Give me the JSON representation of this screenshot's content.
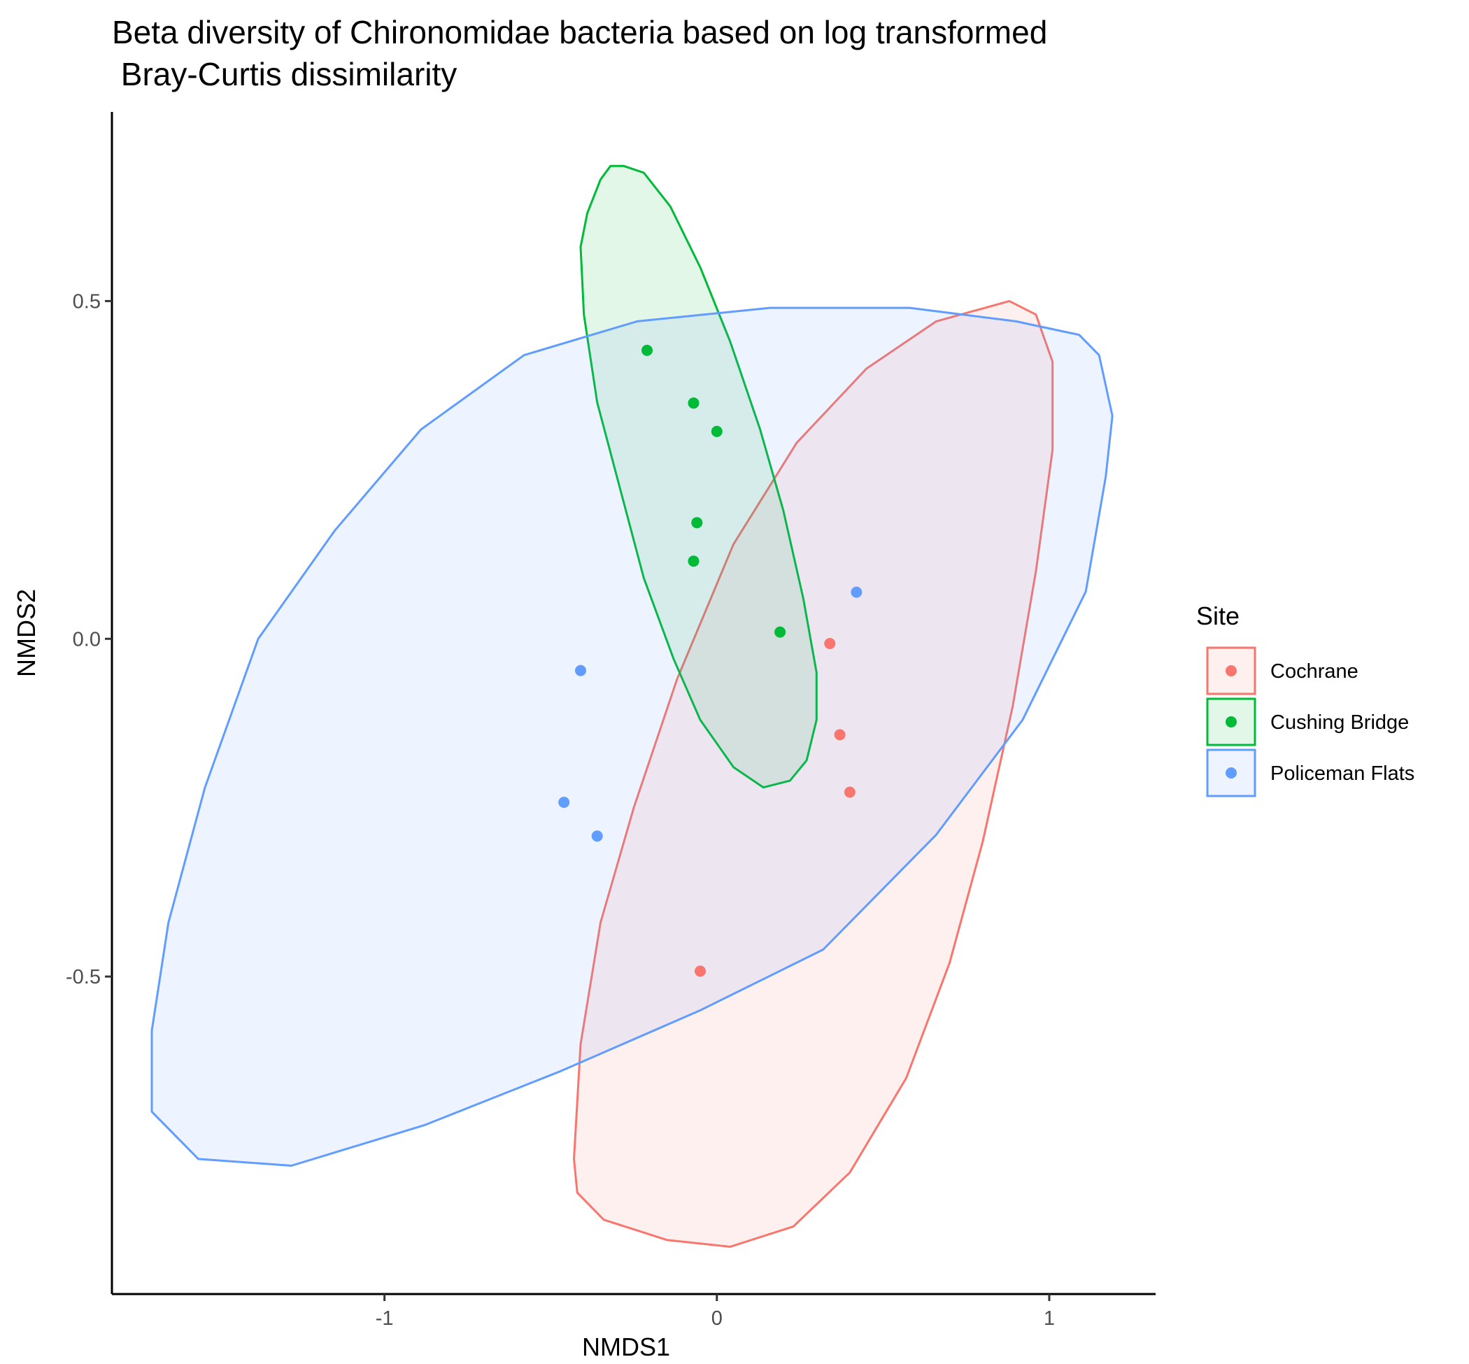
{
  "chart_data": {
    "type": "scatter",
    "title": "Beta diversity of Chironomidae bacteria based on log transformed",
    "subtitle": " Bray-Curtis dissimilarity",
    "xlabel": "NMDS1",
    "ylabel": "NMDS2",
    "xlim": [
      -1.82,
      1.32
    ],
    "ylim": [
      -0.97,
      0.78
    ],
    "x_ticks": [
      -1,
      0,
      1
    ],
    "x_tick_labels": [
      "-1",
      "0",
      "1"
    ],
    "y_ticks": [
      -0.5,
      0.0,
      0.5
    ],
    "y_tick_labels": [
      "-0.5",
      "0.0",
      "0.5"
    ],
    "grid": false,
    "legend": {
      "title": "Site",
      "placement": "right"
    },
    "series": [
      {
        "name": "Cochrane",
        "color": "#F8766D",
        "points": [
          {
            "x": 0.34,
            "y": -0.007
          },
          {
            "x": 0.37,
            "y": -0.142
          },
          {
            "x": 0.4,
            "y": -0.227
          },
          {
            "x": -0.05,
            "y": -0.492
          }
        ],
        "ellipse": [
          [
            0.88,
            0.5
          ],
          [
            0.96,
            0.48
          ],
          [
            1.01,
            0.41
          ],
          [
            1.01,
            0.28
          ],
          [
            0.96,
            0.1
          ],
          [
            0.89,
            -0.1
          ],
          [
            0.8,
            -0.3
          ],
          [
            0.7,
            -0.48
          ],
          [
            0.57,
            -0.65
          ],
          [
            0.4,
            -0.79
          ],
          [
            0.23,
            -0.87
          ],
          [
            0.04,
            -0.9
          ],
          [
            -0.15,
            -0.89
          ],
          [
            -0.34,
            -0.86
          ],
          [
            -0.42,
            -0.82
          ],
          [
            -0.43,
            -0.77
          ],
          [
            -0.41,
            -0.6
          ],
          [
            -0.35,
            -0.42
          ],
          [
            -0.25,
            -0.25
          ],
          [
            -0.12,
            -0.06
          ],
          [
            0.05,
            0.14
          ],
          [
            0.24,
            0.29
          ],
          [
            0.45,
            0.4
          ],
          [
            0.66,
            0.47
          ],
          [
            0.88,
            0.5
          ]
        ]
      },
      {
        "name": "Cushing Bridge",
        "color": "#00BA38",
        "points": [
          {
            "x": -0.21,
            "y": 0.427
          },
          {
            "x": -0.07,
            "y": 0.349
          },
          {
            "x": 0.0,
            "y": 0.307
          },
          {
            "x": -0.06,
            "y": 0.172
          },
          {
            "x": -0.07,
            "y": 0.115
          },
          {
            "x": 0.19,
            "y": 0.01
          }
        ],
        "ellipse": [
          [
            -0.32,
            0.7
          ],
          [
            -0.35,
            0.68
          ],
          [
            -0.39,
            0.63
          ],
          [
            -0.41,
            0.58
          ],
          [
            -0.4,
            0.48
          ],
          [
            -0.36,
            0.35
          ],
          [
            -0.29,
            0.22
          ],
          [
            -0.22,
            0.09
          ],
          [
            -0.13,
            -0.03
          ],
          [
            -0.05,
            -0.12
          ],
          [
            0.05,
            -0.19
          ],
          [
            0.14,
            -0.22
          ],
          [
            0.22,
            -0.21
          ],
          [
            0.27,
            -0.18
          ],
          [
            0.3,
            -0.12
          ],
          [
            0.3,
            -0.05
          ],
          [
            0.26,
            0.06
          ],
          [
            0.2,
            0.19
          ],
          [
            0.13,
            0.31
          ],
          [
            0.04,
            0.44
          ],
          [
            -0.05,
            0.55
          ],
          [
            -0.14,
            0.64
          ],
          [
            -0.22,
            0.69
          ],
          [
            -0.28,
            0.7
          ],
          [
            -0.32,
            0.7
          ]
        ]
      },
      {
        "name": "Policeman Flats",
        "color": "#619CFF",
        "points": [
          {
            "x": 0.42,
            "y": 0.069
          },
          {
            "x": -0.41,
            "y": -0.047
          },
          {
            "x": -0.46,
            "y": -0.242
          },
          {
            "x": -0.36,
            "y": -0.292
          }
        ],
        "ellipse": [
          [
            1.15,
            0.42
          ],
          [
            1.19,
            0.33
          ],
          [
            1.17,
            0.24
          ],
          [
            1.11,
            0.07
          ],
          [
            0.92,
            -0.12
          ],
          [
            0.66,
            -0.29
          ],
          [
            0.32,
            -0.46
          ],
          [
            -0.05,
            -0.55
          ],
          [
            -0.47,
            -0.64
          ],
          [
            -0.88,
            -0.72
          ],
          [
            -1.28,
            -0.78
          ],
          [
            -1.56,
            -0.77
          ],
          [
            -1.7,
            -0.7
          ],
          [
            -1.7,
            -0.58
          ],
          [
            -1.65,
            -0.42
          ],
          [
            -1.54,
            -0.22
          ],
          [
            -1.38,
            0.0
          ],
          [
            -1.15,
            0.16
          ],
          [
            -0.89,
            0.31
          ],
          [
            -0.58,
            0.42
          ],
          [
            -0.24,
            0.47
          ],
          [
            0.16,
            0.49
          ],
          [
            0.58,
            0.49
          ],
          [
            0.9,
            0.47
          ],
          [
            1.09,
            0.45
          ],
          [
            1.15,
            0.42
          ]
        ]
      }
    ]
  }
}
